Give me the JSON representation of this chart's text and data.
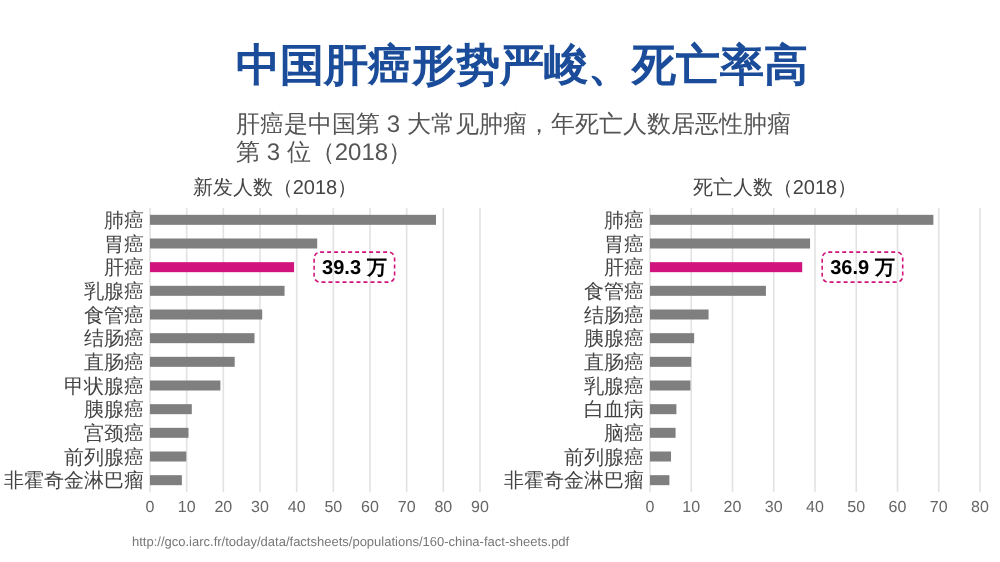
{
  "chart_data": [
    {
      "type": "other",
      "title": "中国肝癌形势严峻、死亡率高",
      "subtitle": "肝癌是中国第 3 大常见肿瘤，年死亡人数居恶性肿瘤第 3 位（2018）",
      "annotations": [
        "http://gco.iarc.fr/today/data/factsheets/populations/160-china-fact-sheets.pdf"
      ]
    },
    {
      "type": "bar",
      "orientation": "horizontal",
      "title": "新发人数（2018）",
      "categories": [
        "肺癌",
        "胃癌",
        "肝癌",
        "乳腺癌",
        "食管癌",
        "结肠癌",
        "直肠癌",
        "甲状腺癌",
        "胰腺癌",
        "宫颈癌",
        "前列腺癌",
        "非霍奇金淋巴瘤"
      ],
      "values": [
        78,
        45.6,
        39.3,
        36.7,
        30.6,
        28.5,
        23.1,
        19.2,
        11.4,
        10.5,
        9.9,
        8.7
      ],
      "colors": [
        "#7f7f7f",
        "#7f7f7f",
        "#d1137d",
        "#7f7f7f",
        "#7f7f7f",
        "#7f7f7f",
        "#7f7f7f",
        "#7f7f7f",
        "#7f7f7f",
        "#7f7f7f",
        "#7f7f7f",
        "#7f7f7f"
      ],
      "xlim": [
        0,
        90
      ],
      "xticks": [
        0,
        10,
        20,
        30,
        40,
        50,
        60,
        70,
        80,
        90
      ],
      "grid": "x",
      "annotations": [
        {
          "text": "39.3 万",
          "x": 39.3,
          "y": "肝癌"
        }
      ]
    },
    {
      "type": "bar",
      "orientation": "horizontal",
      "title": "死亡人数（2018）",
      "categories": [
        "肺癌",
        "胃癌",
        "肝癌",
        "食管癌",
        "结肠癌",
        "胰腺癌",
        "直肠癌",
        "乳腺癌",
        "白血病",
        "脑癌",
        "前列腺癌",
        "非霍奇金淋巴瘤"
      ],
      "values": [
        68.7,
        38.8,
        36.9,
        28.1,
        14.2,
        10.7,
        10,
        9.8,
        6.4,
        6.2,
        5.1,
        4.7
      ],
      "colors": [
        "#7f7f7f",
        "#7f7f7f",
        "#d1137d",
        "#7f7f7f",
        "#7f7f7f",
        "#7f7f7f",
        "#7f7f7f",
        "#7f7f7f",
        "#7f7f7f",
        "#7f7f7f",
        "#7f7f7f",
        "#7f7f7f"
      ],
      "xlim": [
        0,
        80
      ],
      "xticks": [
        0,
        10,
        20,
        30,
        40,
        50,
        60,
        70,
        80
      ],
      "grid": "x",
      "annotations": [
        {
          "text": "36.9 万",
          "x": 36.9,
          "y": "肝癌"
        }
      ]
    }
  ]
}
